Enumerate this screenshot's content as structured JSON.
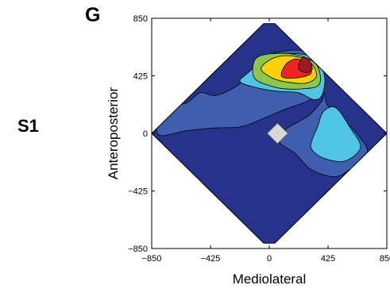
{
  "panel_label": "G",
  "row_label": "S1",
  "chart_data": {
    "type": "contour",
    "title": "",
    "xlabel": "Mediolateral",
    "ylabel": "Anteroposterior",
    "xlim": [
      -850,
      850
    ],
    "ylim": [
      -850,
      850
    ],
    "xticks": [
      -850,
      -425,
      0,
      425,
      850
    ],
    "yticks": [
      -850,
      -425,
      0,
      425,
      850
    ],
    "xtick_labels": [
      "−850",
      "−425",
      "0",
      "425",
      "850"
    ],
    "ytick_labels": [
      "−850",
      "−425",
      "0",
      "425",
      "850"
    ],
    "grid": false,
    "legend": "none",
    "domain": "diamond |x|+|y| <= 850",
    "level_colors": [
      "#27338b",
      "#3f5fae",
      "#4fc4e4",
      "#8dc64c",
      "#fbd20a",
      "#ec2424",
      "#9b1b1f"
    ],
    "levels": [
      {
        "level": 1,
        "color": "#3f5fae",
        "points": [
          [
            -775,
            175
          ],
          [
            -600,
            225
          ],
          [
            -500,
            300
          ],
          [
            -390,
            280
          ],
          [
            -250,
            340
          ],
          [
            -130,
            440
          ],
          [
            -20,
            560
          ],
          [
            60,
            600
          ],
          [
            240,
            610
          ],
          [
            330,
            520
          ],
          [
            380,
            380
          ],
          [
            390,
            260
          ],
          [
            300,
            145
          ],
          [
            220,
            90
          ],
          [
            120,
            30
          ],
          [
            70,
            -60
          ],
          [
            190,
            -150
          ],
          [
            300,
            -265
          ],
          [
            470,
            -320
          ],
          [
            590,
            -260
          ],
          [
            710,
            -140
          ],
          [
            640,
            -10
          ],
          [
            540,
            100
          ],
          [
            420,
            210
          ],
          [
            390,
            300
          ],
          [
            260,
            230
          ],
          [
            120,
            180
          ],
          [
            -20,
            120
          ],
          [
            -200,
            50
          ],
          [
            -400,
            40
          ],
          [
            -600,
            20
          ],
          [
            -800,
            -10
          ]
        ]
      },
      {
        "level": 2,
        "color": "#4fc4e4",
        "points": [
          [
            -210,
            380
          ],
          [
            -60,
            330
          ],
          [
            70,
            310
          ],
          [
            210,
            300
          ],
          [
            320,
            250
          ],
          [
            380,
            280
          ],
          [
            400,
            420
          ],
          [
            330,
            550
          ],
          [
            180,
            590
          ],
          [
            -20,
            560
          ],
          [
            -150,
            450
          ]
        ]
      },
      {
        "level": 2,
        "color": "#4fc4e4",
        "points": [
          [
            300,
            -100
          ],
          [
            350,
            -160
          ],
          [
            450,
            -200
          ],
          [
            560,
            -200
          ],
          [
            660,
            -100
          ],
          [
            580,
            50
          ],
          [
            480,
            190
          ],
          [
            390,
            160
          ],
          [
            350,
            50
          ],
          [
            320,
            -20
          ]
        ]
      },
      {
        "level": 3,
        "color": "#8dc64c",
        "points": [
          [
            -120,
            470
          ],
          [
            -100,
            400
          ],
          [
            -20,
            360
          ],
          [
            100,
            330
          ],
          [
            250,
            330
          ],
          [
            350,
            350
          ],
          [
            370,
            420
          ],
          [
            330,
            520
          ],
          [
            200,
            580
          ],
          [
            40,
            590
          ],
          [
            -90,
            560
          ]
        ]
      },
      {
        "level": 4,
        "color": "#fbd20a",
        "points": [
          [
            -60,
            480
          ],
          [
            20,
            410
          ],
          [
            120,
            380
          ],
          [
            260,
            370
          ],
          [
            340,
            420
          ],
          [
            300,
            520
          ],
          [
            180,
            570
          ],
          [
            40,
            560
          ]
        ]
      },
      {
        "level": 5,
        "color": "#ec2424",
        "points": [
          [
            90,
            420
          ],
          [
            200,
            410
          ],
          [
            300,
            440
          ],
          [
            280,
            500
          ],
          [
            200,
            550
          ],
          [
            120,
            510
          ]
        ]
      },
      {
        "level": 6,
        "color": "#9b1b1f",
        "points": [
          [
            210,
            480
          ],
          [
            260,
            450
          ],
          [
            310,
            470
          ],
          [
            290,
            540
          ],
          [
            240,
            560
          ]
        ]
      }
    ],
    "marker": {
      "shape": "diamond",
      "x": 60,
      "y": 0,
      "color": "#d7d7d7"
    }
  }
}
